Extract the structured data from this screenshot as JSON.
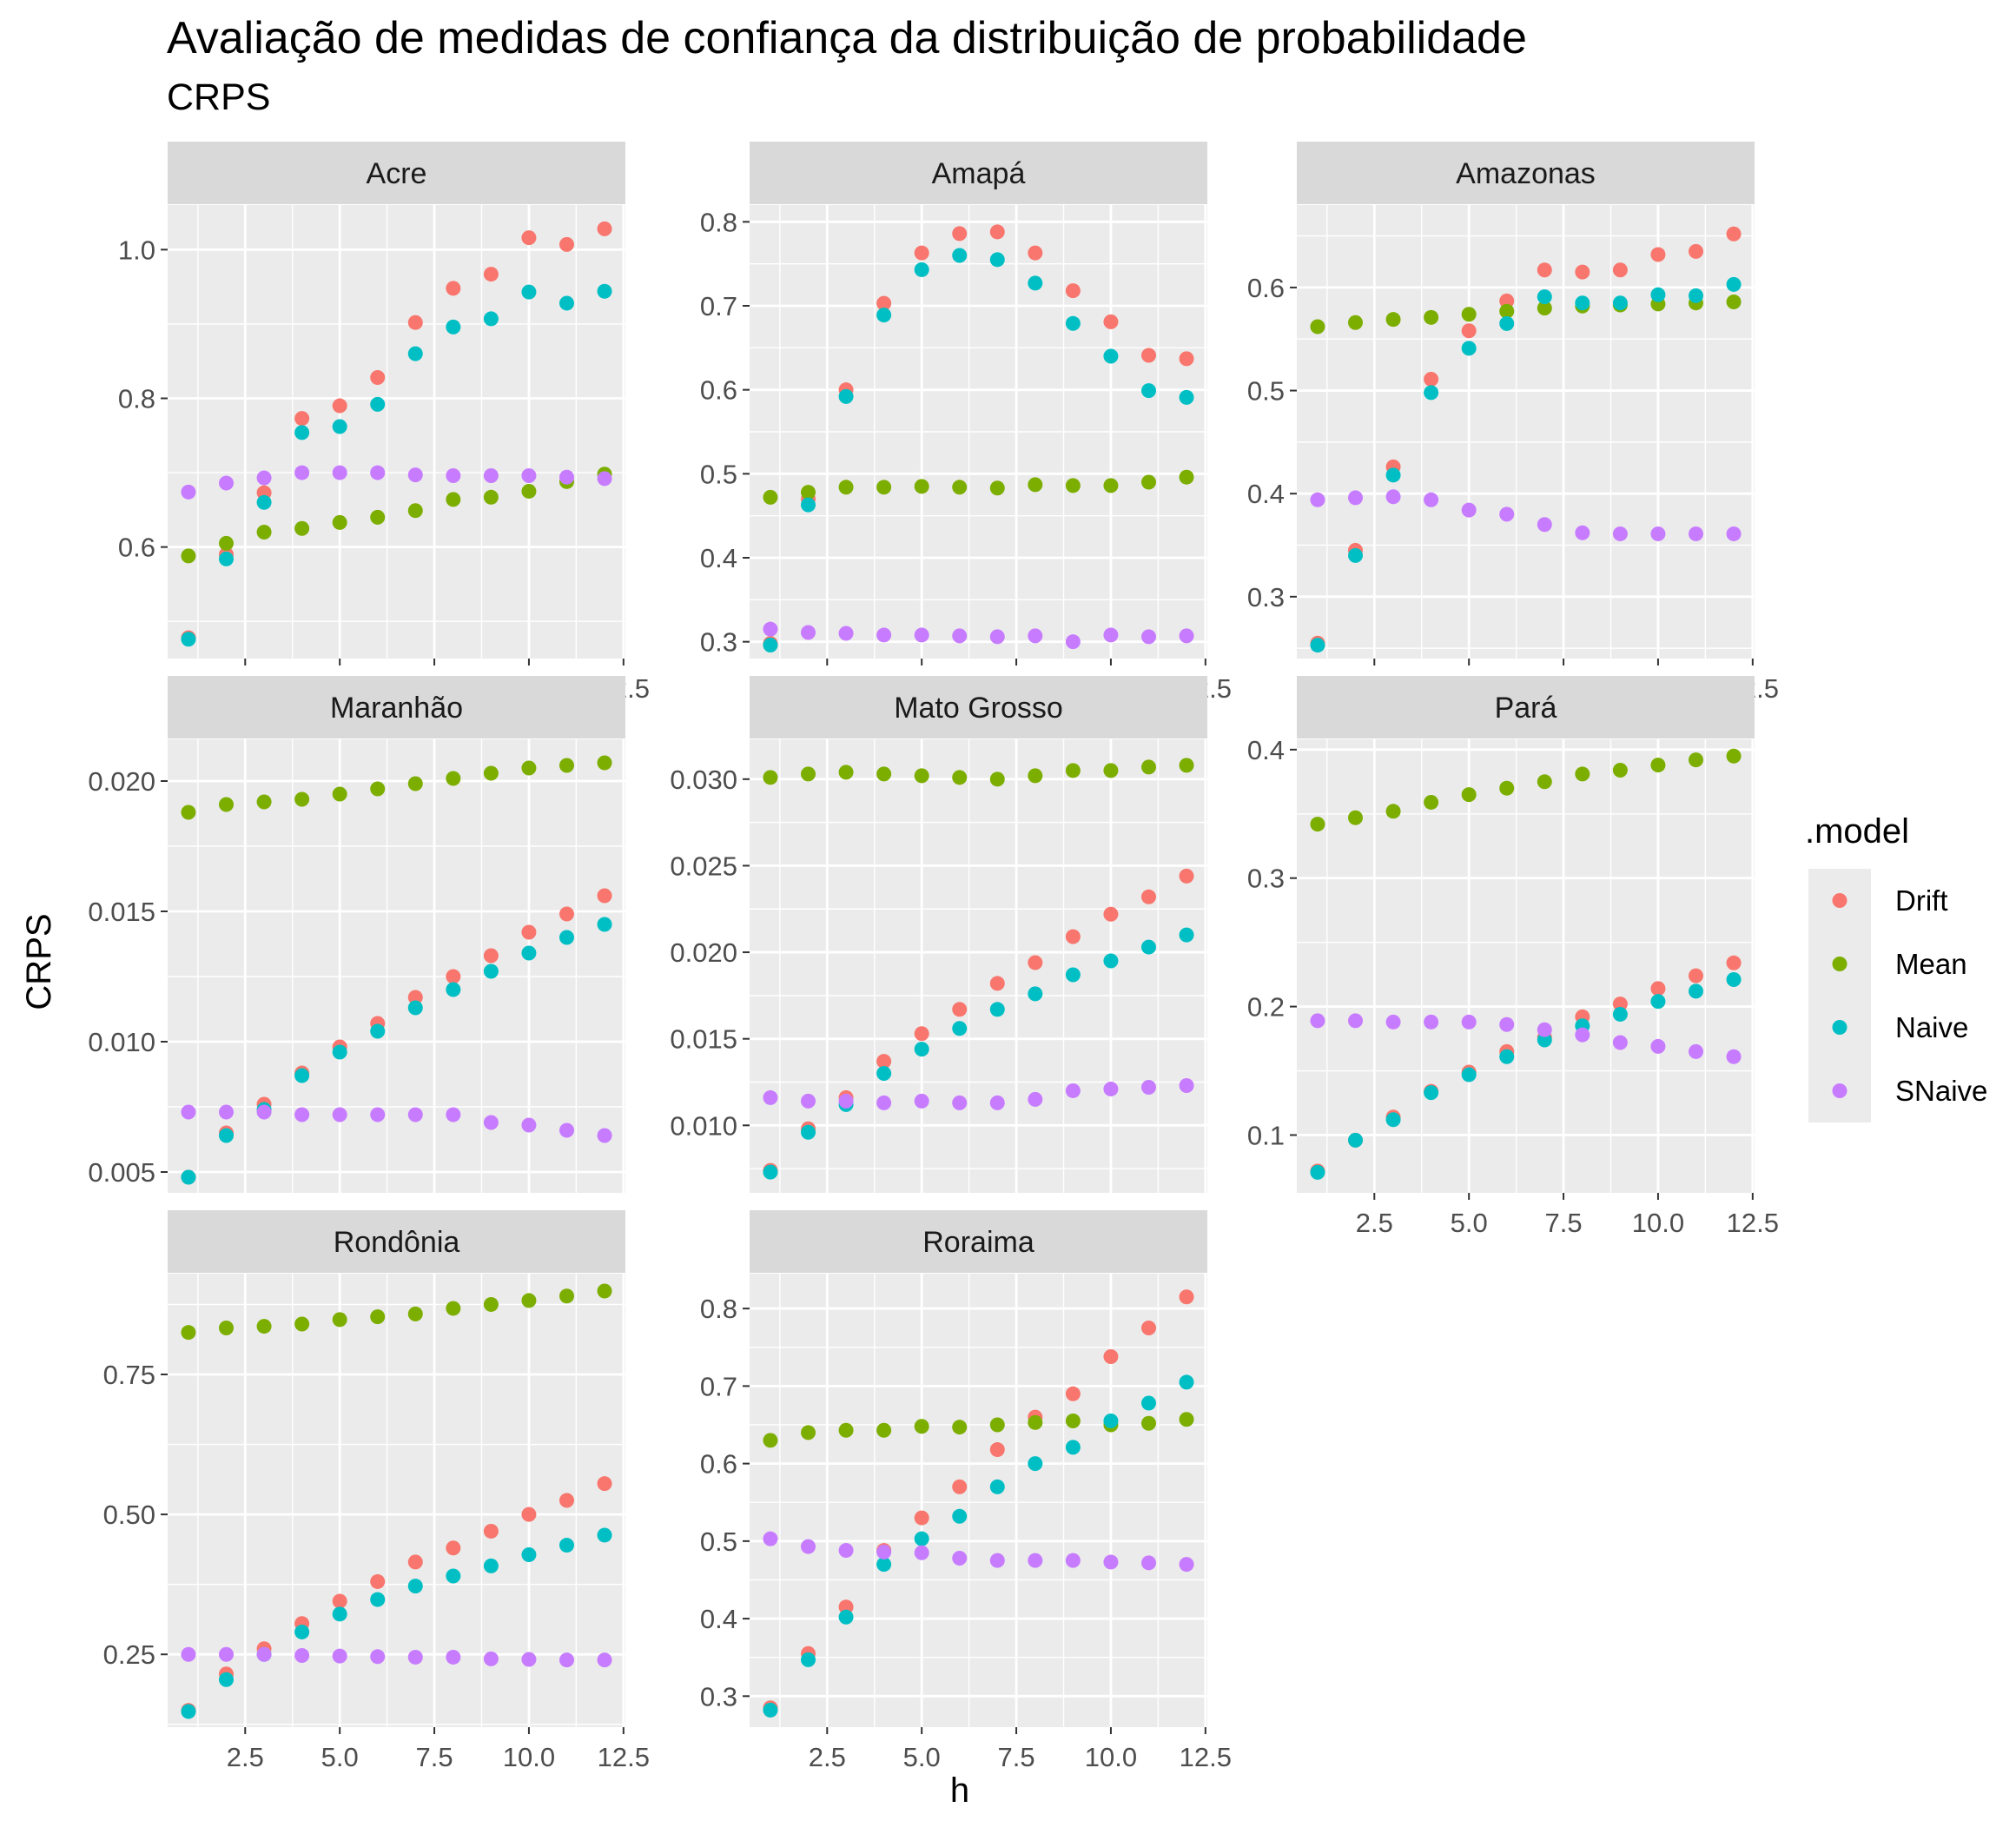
{
  "title": "Avaliação de medidas de confiança da distribuição de probabilidade",
  "subtitle": "CRPS",
  "chart_data": {
    "type": "scatter",
    "facet": "small-multiples",
    "xlabel": "h",
    "ylabel": "CRPS",
    "xlim": [
      0.45,
      12.55
    ],
    "xticks": [
      2.5,
      5.0,
      7.5,
      10.0,
      12.5
    ],
    "xtick_labels": [
      "2.5",
      "5.0",
      "7.5",
      "10.0",
      "12.5"
    ],
    "grid": true,
    "legend": {
      "title": ".model",
      "position": "right",
      "entries": [
        {
          "name": "Drift",
          "color": "#F8766D"
        },
        {
          "name": "Mean",
          "color": "#7CAE00"
        },
        {
          "name": "Naive",
          "color": "#00BFC4"
        },
        {
          "name": "SNaive",
          "color": "#C77CFF"
        }
      ]
    },
    "x": [
      1,
      2,
      3,
      4,
      5,
      6,
      7,
      8,
      9,
      10,
      11,
      12
    ],
    "panels": [
      {
        "name": "Acre",
        "ylim": [
          0.45,
          1.06
        ],
        "yticks": [
          0.6,
          0.8,
          1.0
        ],
        "ytick_labels": [
          "0.6",
          "0.8",
          "1.0"
        ],
        "series": [
          {
            "name": "Drift",
            "values": [
              0.478,
              0.59,
              0.673,
              0.773,
              0.79,
              0.828,
              0.902,
              0.948,
              0.967,
              1.016,
              1.007,
              1.028
            ]
          },
          {
            "name": "Mean",
            "values": [
              0.588,
              0.605,
              0.62,
              0.625,
              0.633,
              0.64,
              0.649,
              0.664,
              0.667,
              0.675,
              0.688,
              0.698
            ]
          },
          {
            "name": "Naive",
            "values": [
              0.476,
              0.584,
              0.66,
              0.754,
              0.762,
              0.792,
              0.86,
              0.896,
              0.907,
              0.943,
              0.928,
              0.944
            ]
          },
          {
            "name": "SNaive",
            "values": [
              0.674,
              0.686,
              0.693,
              0.7,
              0.7,
              0.7,
              0.697,
              0.696,
              0.696,
              0.696,
              0.694,
              0.692
            ]
          }
        ]
      },
      {
        "name": "Amapá",
        "ylim": [
          0.28,
          0.82
        ],
        "yticks": [
          0.3,
          0.4,
          0.5,
          0.6,
          0.7,
          0.8
        ],
        "ytick_labels": [
          "0.3",
          "0.4",
          "0.5",
          "0.6",
          "0.7",
          "0.8"
        ],
        "series": [
          {
            "name": "Drift",
            "values": [
              0.298,
              0.47,
              0.6,
              0.703,
              0.763,
              0.786,
              0.788,
              0.763,
              0.718,
              0.681,
              0.641,
              0.637
            ]
          },
          {
            "name": "Mean",
            "values": [
              0.472,
              0.478,
              0.484,
              0.484,
              0.485,
              0.484,
              0.483,
              0.487,
              0.486,
              0.486,
              0.49,
              0.496
            ]
          },
          {
            "name": "Naive",
            "values": [
              0.296,
              0.463,
              0.592,
              0.689,
              0.743,
              0.76,
              0.755,
              0.727,
              0.679,
              0.64,
              0.599,
              0.591
            ]
          },
          {
            "name": "SNaive",
            "values": [
              0.315,
              0.311,
              0.31,
              0.308,
              0.308,
              0.307,
              0.306,
              0.307,
              0.3,
              0.308,
              0.306,
              0.307
            ]
          }
        ]
      },
      {
        "name": "Amazonas",
        "ylim": [
          0.24,
          0.68
        ],
        "yticks": [
          0.3,
          0.4,
          0.5,
          0.6
        ],
        "ytick_labels": [
          "0.3",
          "0.4",
          "0.5",
          "0.6"
        ],
        "series": [
          {
            "name": "Drift",
            "values": [
              0.255,
              0.345,
              0.426,
              0.511,
              0.558,
              0.587,
              0.617,
              0.615,
              0.617,
              0.632,
              0.635,
              0.652
            ]
          },
          {
            "name": "Mean",
            "values": [
              0.562,
              0.566,
              0.569,
              0.571,
              0.574,
              0.577,
              0.58,
              0.582,
              0.583,
              0.584,
              0.585,
              0.586
            ]
          },
          {
            "name": "Naive",
            "values": [
              0.253,
              0.34,
              0.418,
              0.498,
              0.541,
              0.565,
              0.591,
              0.585,
              0.585,
              0.593,
              0.592,
              0.603
            ]
          },
          {
            "name": "SNaive",
            "values": [
              0.394,
              0.396,
              0.397,
              0.394,
              0.384,
              0.38,
              0.37,
              0.362,
              0.361,
              0.361,
              0.361,
              0.361
            ]
          }
        ]
      },
      {
        "name": "Maranhão",
        "ylim": [
          0.0042,
          0.0216
        ],
        "yticks": [
          0.005,
          0.01,
          0.015,
          0.02
        ],
        "ytick_labels": [
          "0.005",
          "0.010",
          "0.015",
          "0.020"
        ],
        "series": [
          {
            "name": "Drift",
            "values": [
              0.0048,
              0.0065,
              0.0076,
              0.0088,
              0.0098,
              0.0107,
              0.0117,
              0.0125,
              0.0133,
              0.0142,
              0.0149,
              0.0156
            ]
          },
          {
            "name": "Mean",
            "values": [
              0.0188,
              0.0191,
              0.0192,
              0.0193,
              0.0195,
              0.0197,
              0.0199,
              0.0201,
              0.0203,
              0.0205,
              0.0206,
              0.0207
            ]
          },
          {
            "name": "Naive",
            "values": [
              0.0048,
              0.0064,
              0.0074,
              0.0087,
              0.0096,
              0.0104,
              0.0113,
              0.012,
              0.0127,
              0.0134,
              0.014,
              0.0145
            ]
          },
          {
            "name": "SNaive",
            "values": [
              0.0073,
              0.0073,
              0.0073,
              0.0072,
              0.0072,
              0.0072,
              0.0072,
              0.0072,
              0.0069,
              0.0068,
              0.0066,
              0.0064
            ]
          }
        ]
      },
      {
        "name": "Mato Grosso",
        "ylim": [
          0.0061,
          0.0323
        ],
        "yticks": [
          0.01,
          0.015,
          0.02,
          0.025,
          0.03
        ],
        "ytick_labels": [
          "0.010",
          "0.015",
          "0.020",
          "0.025",
          "0.030"
        ],
        "series": [
          {
            "name": "Drift",
            "values": [
              0.0074,
              0.0098,
              0.0116,
              0.0137,
              0.0153,
              0.0167,
              0.0182,
              0.0194,
              0.0209,
              0.0222,
              0.0232,
              0.0244
            ]
          },
          {
            "name": "Mean",
            "values": [
              0.0301,
              0.0303,
              0.0304,
              0.0303,
              0.0302,
              0.0301,
              0.03,
              0.0302,
              0.0305,
              0.0305,
              0.0307,
              0.0308
            ]
          },
          {
            "name": "Naive",
            "values": [
              0.0073,
              0.0096,
              0.0112,
              0.013,
              0.0144,
              0.0156,
              0.0167,
              0.0176,
              0.0187,
              0.0195,
              0.0203,
              0.021
            ]
          },
          {
            "name": "SNaive",
            "values": [
              0.0116,
              0.0114,
              0.0114,
              0.0113,
              0.0114,
              0.0113,
              0.0113,
              0.0115,
              0.012,
              0.0121,
              0.0122,
              0.0123
            ]
          }
        ]
      },
      {
        "name": "Pará",
        "ylim": [
          0.055,
          0.408
        ],
        "yticks": [
          0.1,
          0.2,
          0.3,
          0.4
        ],
        "ytick_labels": [
          "0.1",
          "0.2",
          "0.3",
          "0.4"
        ],
        "series": [
          {
            "name": "Drift",
            "values": [
              0.072,
              0.096,
              0.114,
              0.134,
              0.149,
              0.165,
              0.176,
              0.192,
              0.202,
              0.214,
              0.224,
              0.234
            ]
          },
          {
            "name": "Mean",
            "values": [
              0.342,
              0.347,
              0.352,
              0.359,
              0.365,
              0.37,
              0.375,
              0.381,
              0.384,
              0.388,
              0.392,
              0.395
            ]
          },
          {
            "name": "Naive",
            "values": [
              0.071,
              0.096,
              0.112,
              0.133,
              0.147,
              0.161,
              0.174,
              0.185,
              0.194,
              0.204,
              0.212,
              0.221
            ]
          },
          {
            "name": "SNaive",
            "values": [
              0.189,
              0.189,
              0.188,
              0.188,
              0.188,
              0.186,
              0.182,
              0.178,
              0.172,
              0.169,
              0.165,
              0.161
            ]
          }
        ]
      },
      {
        "name": "Rondônia",
        "ylim": [
          0.12,
          0.93
        ],
        "yticks": [
          0.25,
          0.5,
          0.75
        ],
        "ytick_labels": [
          "0.25",
          "0.50",
          "0.75"
        ],
        "series": [
          {
            "name": "Drift",
            "values": [
              0.15,
              0.215,
              0.26,
              0.305,
              0.345,
              0.38,
              0.415,
              0.44,
              0.47,
              0.5,
              0.525,
              0.555
            ]
          },
          {
            "name": "Mean",
            "values": [
              0.825,
              0.833,
              0.836,
              0.84,
              0.848,
              0.853,
              0.858,
              0.868,
              0.875,
              0.882,
              0.89,
              0.899
            ]
          },
          {
            "name": "Naive",
            "values": [
              0.148,
              0.205,
              0.25,
              0.29,
              0.322,
              0.348,
              0.372,
              0.39,
              0.408,
              0.428,
              0.445,
              0.463
            ]
          },
          {
            "name": "SNaive",
            "values": [
              0.25,
              0.25,
              0.25,
              0.248,
              0.247,
              0.246,
              0.245,
              0.245,
              0.242,
              0.241,
              0.24,
              0.24
            ]
          }
        ]
      },
      {
        "name": "Roraima",
        "ylim": [
          0.26,
          0.845
        ],
        "yticks": [
          0.3,
          0.4,
          0.5,
          0.6,
          0.7,
          0.8
        ],
        "ytick_labels": [
          "0.3",
          "0.4",
          "0.5",
          "0.6",
          "0.7",
          "0.8"
        ],
        "series": [
          {
            "name": "Drift",
            "values": [
              0.285,
              0.355,
              0.415,
              0.488,
              0.53,
              0.57,
              0.618,
              0.66,
              0.69,
              0.738,
              0.775,
              0.815
            ]
          },
          {
            "name": "Mean",
            "values": [
              0.63,
              0.64,
              0.643,
              0.643,
              0.648,
              0.647,
              0.65,
              0.653,
              0.655,
              0.65,
              0.652,
              0.657
            ]
          },
          {
            "name": "Naive",
            "values": [
              0.282,
              0.347,
              0.402,
              0.47,
              0.503,
              0.532,
              0.57,
              0.6,
              0.621,
              0.655,
              0.678,
              0.705
            ]
          },
          {
            "name": "SNaive",
            "values": [
              0.503,
              0.493,
              0.488,
              0.486,
              0.485,
              0.478,
              0.475,
              0.475,
              0.475,
              0.473,
              0.472,
              0.47
            ]
          }
        ]
      }
    ]
  }
}
